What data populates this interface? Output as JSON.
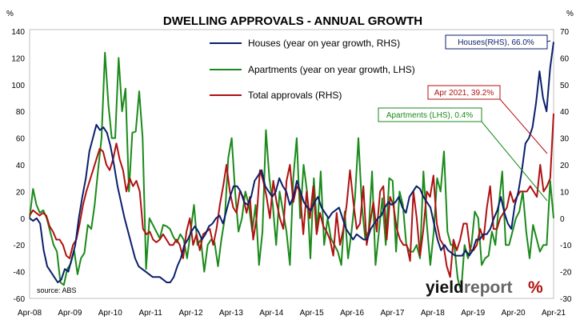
{
  "chart_data": {
    "type": "line",
    "title": "DWELLING APPROVALS - ANNUAL GROWTH",
    "left_axis": {
      "unit": "%",
      "ylim": [
        -60,
        140
      ],
      "ticks": [
        -60,
        -40,
        -20,
        0,
        20,
        40,
        60,
        80,
        100,
        120,
        140
      ]
    },
    "right_axis": {
      "unit": "%",
      "ylim": [
        -30,
        70
      ],
      "ticks": [
        -30,
        -20,
        -10,
        0,
        10,
        20,
        30,
        40,
        50,
        60,
        70
      ]
    },
    "x_ticks": [
      "Apr-08",
      "Apr-09",
      "Apr-10",
      "Apr-11",
      "Apr-12",
      "Apr-13",
      "Apr-14",
      "Apr-15",
      "Apr-16",
      "Apr-17",
      "Apr-18",
      "Apr-19",
      "Apr-20",
      "Apr-21"
    ],
    "x_start": "Apr-08",
    "series": [
      {
        "name": "Houses (year on year growth, RHS)",
        "axis": "right",
        "color": "#0a1f6b",
        "values": [
          0,
          -1,
          0,
          -2,
          -12,
          -18,
          -20,
          -22,
          -24,
          -23,
          -19,
          -20,
          -15,
          -10,
          0,
          8,
          15,
          25,
          30,
          35,
          33,
          34,
          32,
          27,
          20,
          12,
          6,
          0,
          -5,
          -10,
          -15,
          -18,
          -19,
          -20,
          -21,
          -22,
          -22,
          -22,
          -23,
          -24,
          -24,
          -22,
          -18,
          -15,
          -10,
          -8,
          -5,
          -3,
          -5,
          -8,
          -6,
          -3,
          -2,
          0,
          1,
          -2,
          3,
          8,
          12,
          12,
          10,
          6,
          5,
          8,
          14,
          16,
          18,
          12,
          10,
          8,
          10,
          15,
          12,
          10,
          5,
          8,
          14,
          10,
          6,
          4,
          3,
          6,
          8,
          4,
          2,
          0,
          2,
          3,
          4,
          0,
          -4,
          -6,
          -8,
          -6,
          -7,
          -8,
          -8,
          -4,
          -2,
          0,
          1,
          4,
          6,
          5,
          6,
          8,
          4,
          2,
          8,
          10,
          12,
          11,
          8,
          6,
          4,
          -2,
          -8,
          -12,
          -10,
          -12,
          -13,
          -14,
          -14,
          -14,
          -12,
          -14,
          -12,
          -8,
          -8,
          -6,
          -6,
          -4,
          0,
          3,
          8,
          2,
          -2,
          -4,
          5,
          10,
          18,
          28,
          30,
          34,
          43,
          55,
          45,
          40,
          56,
          66
        ]
      },
      {
        "name": "Apartments (year on year growth, LHS)",
        "axis": "left",
        "color": "#1a8a1a",
        "values": [
          0,
          22,
          10,
          4,
          6,
          0,
          -10,
          -20,
          -25,
          -48,
          -50,
          -38,
          -34,
          -24,
          -42,
          -30,
          -26,
          -5,
          -8,
          10,
          36,
          60,
          124,
          85,
          60,
          60,
          120,
          80,
          97,
          20,
          64,
          65,
          95,
          60,
          -38,
          0,
          -5,
          -10,
          -15,
          -5,
          -6,
          -8,
          -14,
          -18,
          -12,
          -16,
          -30,
          -10,
          10,
          -20,
          -16,
          -40,
          -20,
          -16,
          -18,
          -36,
          -16,
          0,
          45,
          60,
          20,
          -10,
          0,
          20,
          10,
          -10,
          10,
          -35,
          -10,
          66,
          30,
          10,
          -20,
          20,
          5,
          -10,
          -35,
          30,
          60,
          0,
          40,
          20,
          -30,
          30,
          -10,
          35,
          -20,
          0,
          -15,
          -20,
          -25,
          -35,
          5,
          -30,
          -10,
          15,
          60,
          10,
          -15,
          -10,
          35,
          -35,
          -10,
          15,
          -20,
          30,
          28,
          -25,
          20,
          10,
          -20,
          -25,
          -25,
          -20,
          -30,
          35,
          -5,
          -35,
          -10,
          30,
          20,
          50,
          -10,
          -20,
          -20,
          -45,
          -55,
          -20,
          -30,
          -20,
          5,
          0,
          -35,
          -30,
          -28,
          -10,
          -20,
          10,
          35,
          -20,
          -20,
          -10,
          0,
          5,
          20,
          -10,
          -30,
          -5,
          -15,
          -25,
          -20,
          -20,
          28,
          0
        ]
      },
      {
        "name": "Total approvals (RHS)",
        "axis": "right",
        "color": "#b01010",
        "values": [
          1,
          3,
          2,
          1,
          2,
          1,
          -3,
          -5,
          -8,
          -8,
          -10,
          -14,
          -15,
          -10,
          -8,
          -2,
          5,
          10,
          14,
          18,
          22,
          26,
          25,
          20,
          18,
          22,
          28,
          22,
          18,
          10,
          15,
          12,
          14,
          10,
          -4,
          -6,
          -5,
          -8,
          -9,
          -8,
          -6,
          -8,
          -10,
          -10,
          -8,
          -10,
          -15,
          -5,
          0,
          -10,
          -6,
          -12,
          -6,
          -5,
          -4,
          -10,
          -4,
          5,
          12,
          20,
          10,
          4,
          2,
          10,
          8,
          2,
          8,
          -8,
          0,
          18,
          14,
          8,
          0,
          14,
          6,
          0,
          -4,
          14,
          20,
          6,
          12,
          10,
          -6,
          10,
          0,
          12,
          -6,
          2,
          -3,
          -5,
          -8,
          -14,
          2,
          -10,
          -4,
          5,
          18,
          6,
          -4,
          -2,
          12,
          -10,
          -2,
          6,
          -5,
          10,
          12,
          -8,
          8,
          5,
          -4,
          -8,
          -10,
          -10,
          -16,
          10,
          0,
          -14,
          -4,
          10,
          8,
          16,
          -2,
          -8,
          -10,
          -18,
          -22,
          -8,
          -12,
          -8,
          -2,
          -2,
          -12,
          -12,
          -10,
          -4,
          -8,
          4,
          12,
          -4,
          -4,
          0,
          2,
          4,
          10,
          6,
          8,
          10,
          10,
          10,
          12,
          10,
          8,
          20,
          10,
          12,
          15,
          39.2
        ]
      }
    ],
    "annotations": [
      {
        "text": "Houses(RHS), 66.0%",
        "color": "#0a1f6b"
      },
      {
        "text": "Apr 2021, 39.2%",
        "color": "#b01010"
      },
      {
        "text": "Apartments (LHS), 0.4%",
        "color": "#1a8a1a"
      }
    ],
    "legend_placement": "top-center",
    "grid": false
  },
  "source": "source: ABS",
  "logo": {
    "word1": "yield",
    "word2": "report",
    "mark": "%"
  }
}
